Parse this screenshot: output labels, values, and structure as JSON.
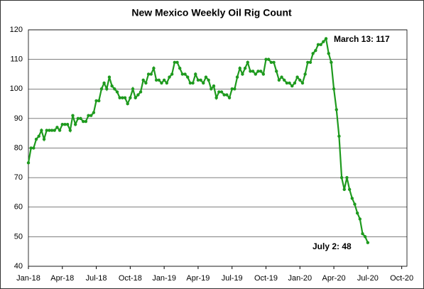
{
  "chart_data": {
    "type": "line",
    "title": "New Mexico Weekly Oil Rig Count",
    "annotations": [
      "March 13: 117",
      "July 2: 48"
    ],
    "series": [
      {
        "color": "#1e9a1e",
        "values": [
          75,
          80,
          80,
          83,
          84,
          86,
          83,
          86,
          86,
          86,
          86,
          87,
          86,
          88,
          88,
          88,
          86,
          91,
          88,
          90,
          90,
          89,
          89,
          91,
          91,
          92,
          96,
          96,
          100,
          102,
          100,
          104,
          101,
          100,
          99,
          97,
          97,
          97,
          95,
          97,
          100,
          97,
          98,
          99,
          103,
          102,
          105,
          105,
          107,
          103,
          103,
          102,
          103,
          102,
          104,
          105,
          109,
          109,
          107,
          105,
          105,
          104,
          102,
          102,
          105,
          103,
          103,
          102,
          104,
          103,
          100,
          101,
          97,
          99,
          99,
          98,
          98,
          97,
          100,
          100,
          104,
          107,
          105,
          107,
          109,
          106,
          106,
          105,
          106,
          106,
          105,
          110,
          110,
          109,
          109,
          106,
          103,
          104,
          103,
          102,
          102,
          101,
          102,
          104,
          103,
          102,
          105,
          109,
          109,
          112,
          113,
          115,
          115,
          116,
          117,
          112,
          109,
          100,
          93,
          84,
          70,
          66,
          70,
          66,
          63,
          61,
          58,
          56,
          51,
          50,
          48
        ]
      }
    ],
    "xlim": [
      0,
      145
    ],
    "xticks": [
      {
        "value": 0,
        "label": "Jan-18"
      },
      {
        "value": 13,
        "label": "Apr-18"
      },
      {
        "value": 26,
        "label": "Jul-18"
      },
      {
        "value": 39,
        "label": "Oct-18"
      },
      {
        "value": 52,
        "label": "Jan-19"
      },
      {
        "value": 65,
        "label": "Apr-19"
      },
      {
        "value": 78,
        "label": "Jul-19"
      },
      {
        "value": 91,
        "label": "Oct-19"
      },
      {
        "value": 104,
        "label": "Jan-20"
      },
      {
        "value": 117,
        "label": "Apr-20"
      },
      {
        "value": 130,
        "label": "Jul-20"
      },
      {
        "value": 143,
        "label": "Oct-20"
      }
    ],
    "ylim": [
      40,
      120
    ],
    "yticks": [
      40,
      50,
      60,
      70,
      80,
      90,
      100,
      110,
      120
    ],
    "grid": true
  }
}
